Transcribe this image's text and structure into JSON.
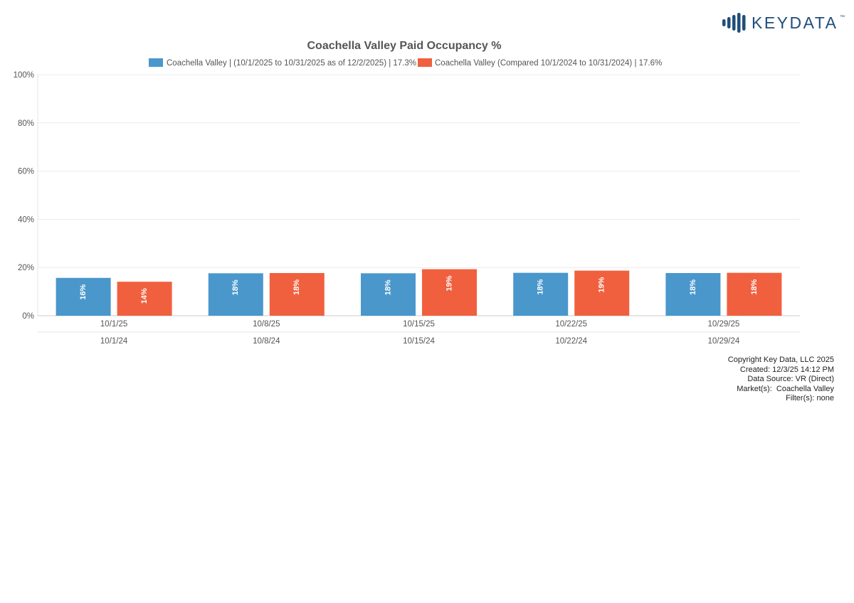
{
  "brand": {
    "logo_text": "KEYDATA",
    "trademark": "™",
    "color": "#1f4e79"
  },
  "chart_data": {
    "type": "bar",
    "title": "Coachella Valley Paid Occupancy %",
    "categories": [
      "10/1/25",
      "10/8/25",
      "10/15/25",
      "10/22/25",
      "10/29/25"
    ],
    "secondary_categories": [
      "10/1/24",
      "10/8/24",
      "10/15/24",
      "10/22/24",
      "10/29/24"
    ],
    "series": [
      {
        "name": "Coachella Valley | (10/1/2025 to 10/31/2025 as of 12/2/2025) | 17.3%",
        "color": "#4a97cc",
        "values": [
          15.7,
          17.6,
          17.6,
          17.8,
          17.7
        ],
        "labels": [
          "16%",
          "18%",
          "18%",
          "18%",
          "18%"
        ]
      },
      {
        "name": "Coachella Valley (Compared 10/1/2024 to 10/31/2024) | 17.6%",
        "color": "#f0603f",
        "values": [
          14.1,
          17.7,
          19.3,
          18.7,
          17.8
        ],
        "labels": [
          "14%",
          "18%",
          "19%",
          "19%",
          "18%"
        ]
      }
    ],
    "y_ticks": [
      "0%",
      "20%",
      "40%",
      "60%",
      "80%",
      "100%"
    ],
    "ylim": [
      0,
      100
    ],
    "xlabel": "",
    "ylabel": "",
    "grid": true,
    "legend": "top-center"
  },
  "footer": {
    "lines": [
      "Copyright Key Data, LLC 2025",
      "Created: 12/3/25 14:12 PM",
      "Data Source: VR (Direct)",
      "Market(s):  Coachella Valley",
      "Filter(s): none"
    ]
  }
}
